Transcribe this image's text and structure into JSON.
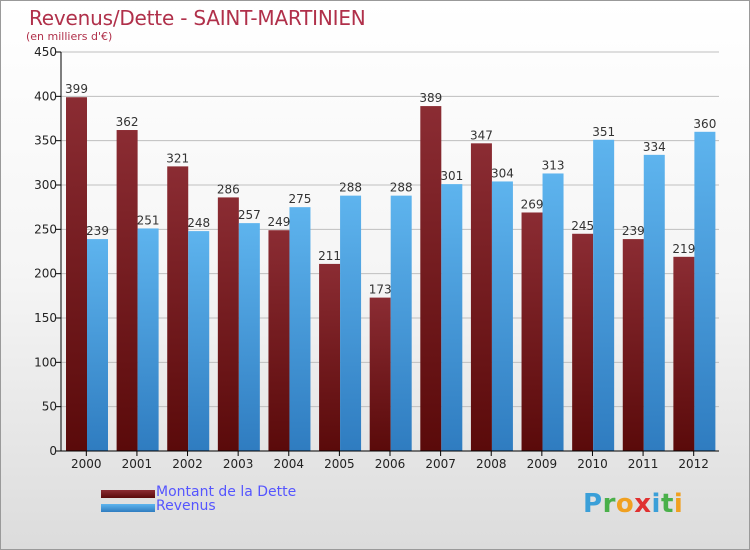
{
  "title": "Revenus/Dette - SAINT-MARTINIEN",
  "subtitle": "(en milliers d'€)",
  "colors": {
    "dette_top": "#8b2c33",
    "dette_bottom": "#5a0a0a",
    "revenus_top": "#5eb4ee",
    "revenus_bottom": "#2f7cc0",
    "axis": "#000000",
    "grid": "#bfbfbf",
    "title": "#b0304a",
    "legend_text": "#5555ff"
  },
  "chart_data": {
    "type": "bar",
    "categories": [
      "2000",
      "2001",
      "2002",
      "2003",
      "2004",
      "2005",
      "2006",
      "2007",
      "2008",
      "2009",
      "2010",
      "2011",
      "2012"
    ],
    "series": [
      {
        "name": "Montant de la Dette",
        "values": [
          399,
          362,
          321,
          286,
          249,
          211,
          173,
          389,
          347,
          269,
          245,
          239,
          219
        ]
      },
      {
        "name": "Revenus",
        "values": [
          239,
          251,
          248,
          257,
          275,
          288,
          288,
          301,
          304,
          313,
          351,
          334,
          360
        ]
      }
    ],
    "ylim": [
      0,
      450
    ],
    "yticks": [
      0,
      50,
      100,
      150,
      200,
      250,
      300,
      350,
      400,
      450
    ],
    "grid": true,
    "legend_position": "bottom-left"
  },
  "legend": [
    {
      "label": "Montant de la Dette"
    },
    {
      "label": "Revenus"
    }
  ],
  "logo": {
    "letters": [
      "P",
      "r",
      "o",
      "x",
      "i",
      "t",
      "i"
    ],
    "colors": [
      "#3a9fd8",
      "#4ab04a",
      "#f0a020",
      "#e03030",
      "#3a9fd8",
      "#4ab04a",
      "#f0a020"
    ]
  }
}
